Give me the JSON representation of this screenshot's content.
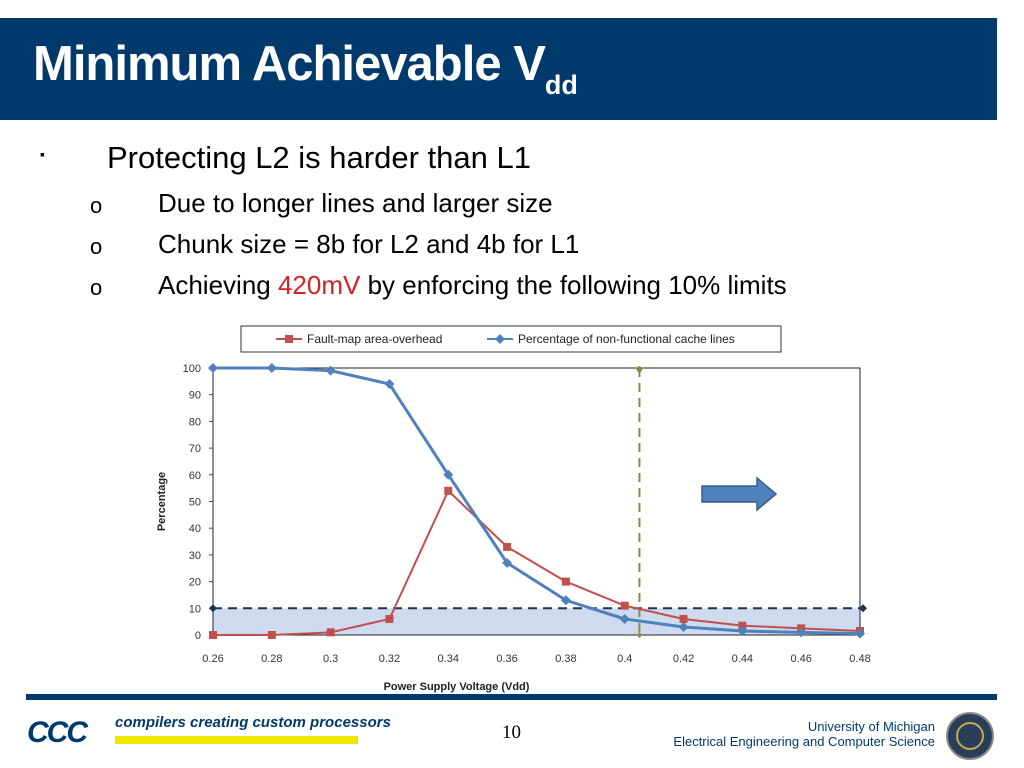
{
  "slide": {
    "title_main": "Minimum Achievable V",
    "title_sub": "dd",
    "bullet_marker": "▪",
    "sub_marker": "o",
    "bullet1": "Protecting L2 is harder than L1",
    "sub1": "Due to longer lines and larger size",
    "sub2": "Chunk size = 8b for L2 and 4b for L1",
    "sub3_pre": "Achieving ",
    "sub3_hl": "420mV",
    "sub3_post": " by enforcing the following 10% limits",
    "highlight_color": "#d42121",
    "title_bar_color": "#003a6c"
  },
  "chart_data": {
    "type": "line",
    "xlabel": "Power Supply Voltage (Vdd)",
    "ylabel": "Percentage",
    "x": [
      0.26,
      0.28,
      0.3,
      0.32,
      0.34,
      0.36,
      0.38,
      0.4,
      0.42,
      0.44,
      0.46,
      0.48
    ],
    "x_tick_labels": [
      "0.26",
      "0.28",
      "0.3",
      "0.32",
      "0.34",
      "0.36",
      "0.38",
      "0.4",
      "0.42",
      "0.44",
      "0.46",
      "0.48"
    ],
    "ylim": [
      0,
      100
    ],
    "y_ticks": [
      0,
      10,
      20,
      30,
      40,
      50,
      60,
      70,
      80,
      90,
      100
    ],
    "legend_placement": "top",
    "series": [
      {
        "name": "Fault-map area-overhead",
        "color": "#c0504d",
        "marker": "square",
        "values": [
          0,
          0,
          1,
          6,
          54,
          33,
          20,
          11,
          6,
          3.5,
          2.5,
          1.5
        ]
      },
      {
        "name": "Percentage of non-functional cache lines",
        "color": "#4f81bd",
        "marker": "diamond",
        "values": [
          100,
          100,
          99,
          94,
          60,
          27,
          13,
          6,
          3,
          1.5,
          1,
          0.5
        ]
      }
    ],
    "threshold_y": 10,
    "vdd_marker_x": 0.405,
    "shaded_region": "below-10"
  },
  "footer": {
    "ccc_logo": "CCC",
    "ccc_tagline": "compilers creating custom processors",
    "page_number": "10",
    "university": "University of Michigan",
    "department": "Electrical Engineering and Computer Science"
  }
}
